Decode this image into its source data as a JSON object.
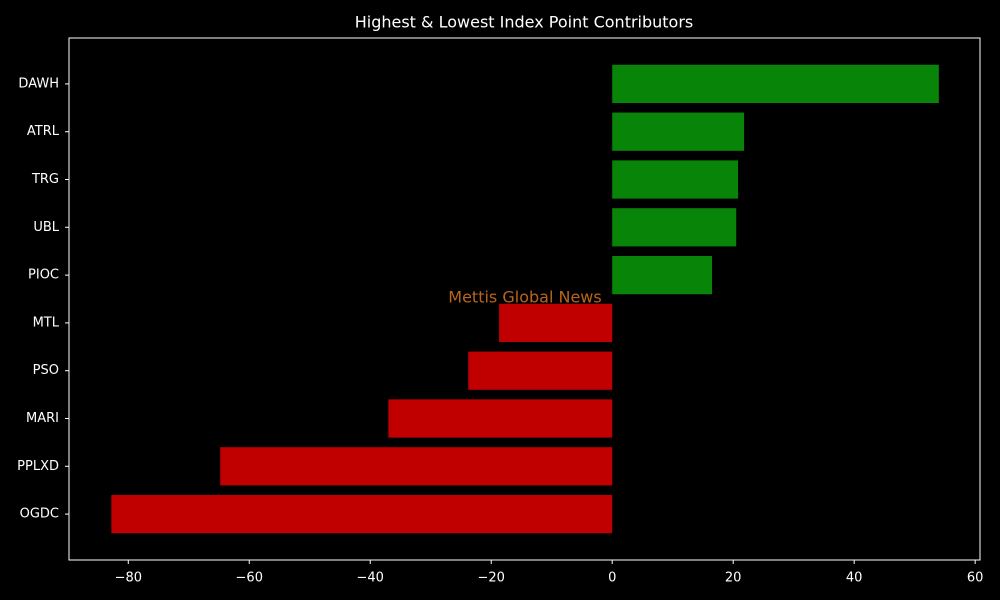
{
  "chart_data": {
    "type": "barh",
    "title": "Highest & Lowest Index Point Contributors",
    "annotation": "Mettis Global News",
    "categories": [
      "DAWH",
      "ATRL",
      "TRG",
      "UBL",
      "PIOC",
      "MTL",
      "PSO",
      "MARI",
      "PPLXD",
      "OGDC"
    ],
    "values": [
      54.0,
      21.8,
      20.8,
      20.5,
      16.5,
      -18.7,
      -23.8,
      -37.0,
      -64.8,
      -82.8
    ],
    "colors": [
      "#088408",
      "#088408",
      "#088408",
      "#088408",
      "#088408",
      "#c00000",
      "#c00000",
      "#c00000",
      "#c00000",
      "#c00000"
    ],
    "xlim": [
      -89.8,
      60.8
    ],
    "xticks": [
      {
        "value": -80,
        "label": "−80"
      },
      {
        "value": -60,
        "label": "−60"
      },
      {
        "value": -40,
        "label": "−40"
      },
      {
        "value": -20,
        "label": "−20"
      },
      0,
      20,
      40,
      60
    ]
  }
}
